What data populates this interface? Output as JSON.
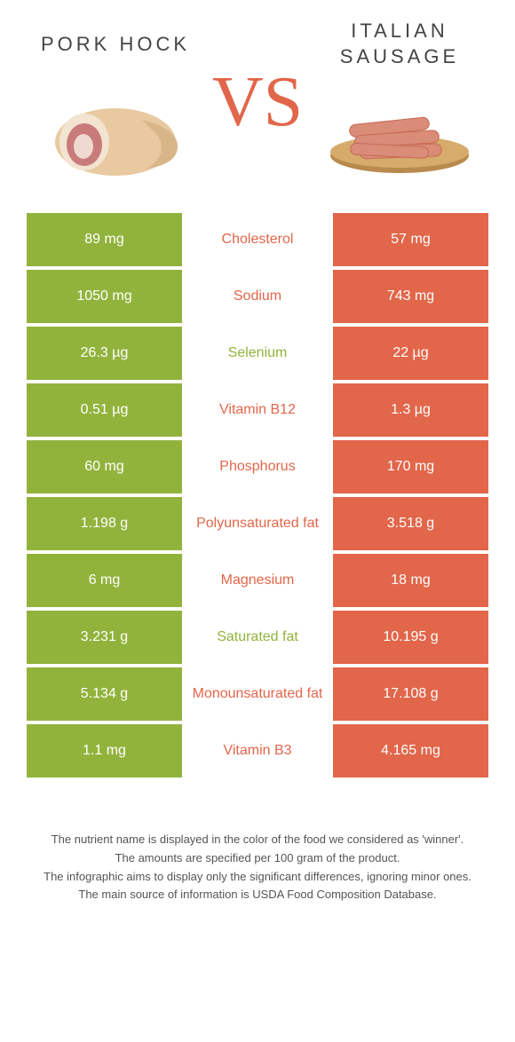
{
  "colors": {
    "left": "#91b33c",
    "right": "#e2664a",
    "cell_text": "#ffffff",
    "vs": "#e2664a"
  },
  "foods": {
    "left": {
      "title": "PORK HOCK"
    },
    "right": {
      "title": "ITALIAN SAUSAGE"
    }
  },
  "vs_label": "VS",
  "rows": [
    {
      "nutrient": "Cholesterol",
      "winner": "right",
      "left": "89 mg",
      "right": "57 mg"
    },
    {
      "nutrient": "Sodium",
      "winner": "right",
      "left": "1050 mg",
      "right": "743 mg"
    },
    {
      "nutrient": "Selenium",
      "winner": "left",
      "left": "26.3 µg",
      "right": "22 µg"
    },
    {
      "nutrient": "Vitamin B12",
      "winner": "right",
      "left": "0.51 µg",
      "right": "1.3 µg"
    },
    {
      "nutrient": "Phosphorus",
      "winner": "right",
      "left": "60 mg",
      "right": "170 mg"
    },
    {
      "nutrient": "Polyunsaturated fat",
      "winner": "right",
      "left": "1.198 g",
      "right": "3.518 g"
    },
    {
      "nutrient": "Magnesium",
      "winner": "right",
      "left": "6 mg",
      "right": "18 mg"
    },
    {
      "nutrient": "Saturated fat",
      "winner": "left",
      "left": "3.231 g",
      "right": "10.195 g"
    },
    {
      "nutrient": "Monounsaturated fat",
      "winner": "right",
      "left": "5.134 g",
      "right": "17.108 g"
    },
    {
      "nutrient": "Vitamin B3",
      "winner": "right",
      "left": "1.1 mg",
      "right": "4.165 mg"
    }
  ],
  "footer": {
    "line1": "The nutrient name is displayed in the color of the food we considered as 'winner'.",
    "line2": "The amounts are specified per 100 gram of the product.",
    "line3": "The infographic aims to display only the significant differences, ignoring minor ones.",
    "line4": "The main source of information is USDA Food Composition Database."
  }
}
